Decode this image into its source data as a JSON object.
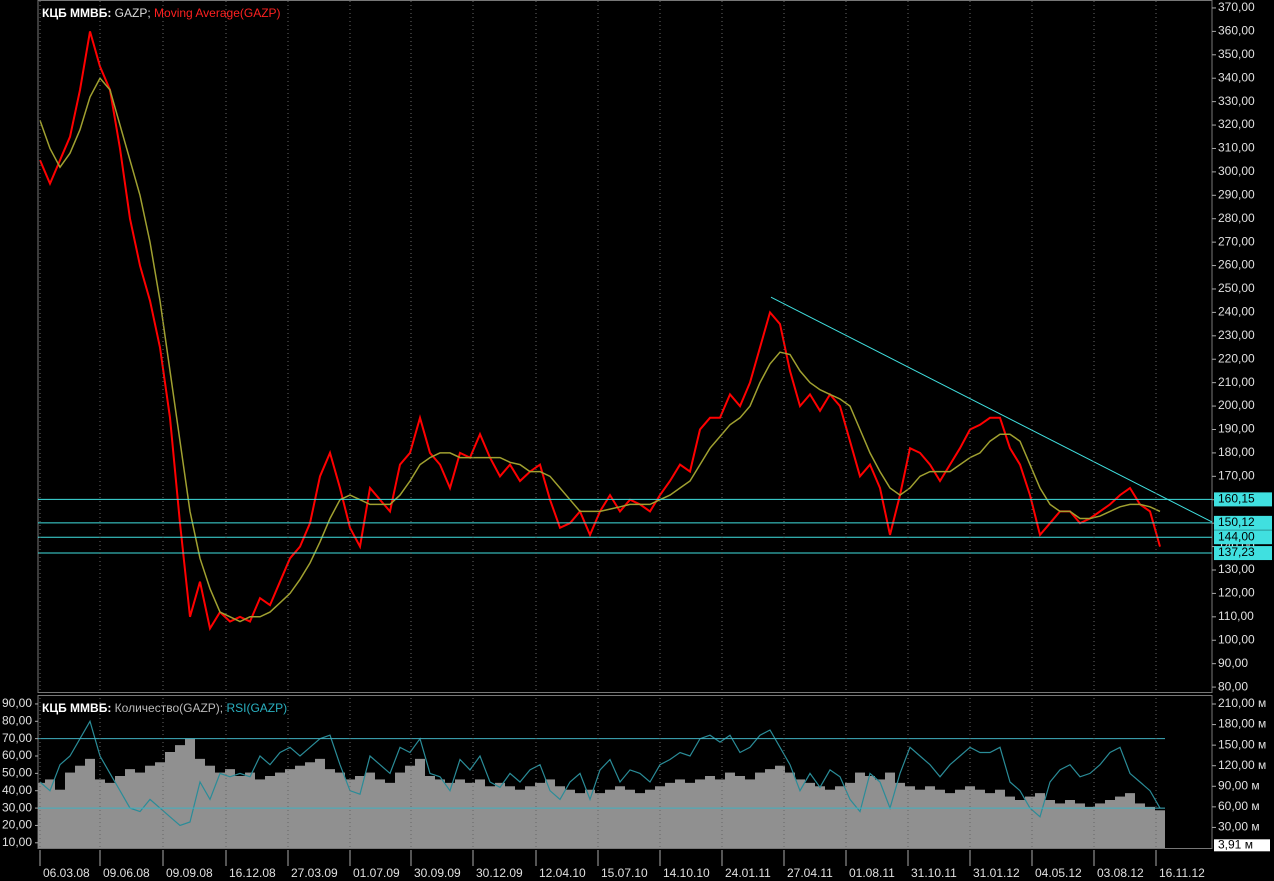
{
  "chart_data": [
    {
      "type": "line",
      "title": "КЦБ ММВБ:",
      "x": [
        0,
        1,
        2,
        3,
        4,
        5,
        6,
        7,
        8,
        9,
        10,
        11,
        12,
        13,
        14,
        15,
        16,
        17,
        18,
        19,
        20,
        21,
        22,
        23,
        24,
        25,
        26,
        27,
        28,
        29,
        30,
        31,
        32,
        33,
        34,
        35,
        36,
        37,
        38,
        39,
        40,
        41,
        42,
        43,
        44,
        45,
        46,
        47,
        48,
        49,
        50,
        51,
        52,
        53,
        54,
        55,
        56,
        57,
        58,
        59,
        60,
        61,
        62,
        63,
        64,
        65,
        66,
        67,
        68,
        69,
        70,
        71,
        72,
        73,
        74,
        75,
        76,
        77,
        78,
        79,
        80,
        81,
        82,
        83,
        84,
        85,
        86,
        87,
        88,
        89,
        90,
        91,
        92,
        93,
        94,
        95,
        96,
        97,
        98,
        99,
        100,
        101,
        102,
        103,
        104,
        105,
        106,
        107,
        108,
        109,
        110,
        111,
        112
      ],
      "series": [
        {
          "name": "GAZP;",
          "color": "#ff0000",
          "values": [
            305,
            295,
            305,
            315,
            335,
            360,
            345,
            335,
            310,
            280,
            260,
            245,
            225,
            195,
            150,
            110,
            125,
            105,
            112,
            108,
            110,
            108,
            118,
            115,
            125,
            135,
            140,
            150,
            170,
            180,
            165,
            148,
            140,
            165,
            160,
            155,
            175,
            180,
            195,
            180,
            175,
            165,
            180,
            178,
            188,
            178,
            170,
            175,
            168,
            172,
            175,
            160,
            148,
            150,
            155,
            145,
            155,
            162,
            155,
            160,
            158,
            155,
            162,
            168,
            175,
            172,
            190,
            195,
            195,
            205,
            200,
            210,
            225,
            240,
            235,
            215,
            200,
            205,
            198,
            205,
            200,
            185,
            170,
            175,
            165,
            145,
            162,
            182,
            180,
            175,
            168,
            175,
            182,
            190,
            192,
            195,
            195,
            182,
            175,
            162,
            145,
            150,
            155,
            155,
            150,
            152,
            155,
            158,
            162,
            165,
            158,
            155,
            140
          ]
        },
        {
          "name": "Moving Average(GAZP)",
          "color": "#a0a030",
          "values": [
            322,
            310,
            302,
            308,
            318,
            332,
            340,
            335,
            320,
            305,
            290,
            270,
            245,
            215,
            185,
            155,
            135,
            122,
            112,
            110,
            108,
            110,
            110,
            112,
            116,
            120,
            126,
            133,
            142,
            152,
            160,
            162,
            160,
            158,
            158,
            158,
            162,
            168,
            175,
            178,
            180,
            180,
            178,
            178,
            178,
            178,
            178,
            176,
            175,
            172,
            172,
            170,
            165,
            160,
            155,
            155,
            155,
            156,
            157,
            158,
            158,
            158,
            160,
            162,
            165,
            168,
            175,
            182,
            187,
            192,
            195,
            200,
            210,
            218,
            223,
            222,
            215,
            210,
            207,
            205,
            203,
            200,
            190,
            180,
            172,
            165,
            162,
            165,
            170,
            172,
            172,
            172,
            175,
            178,
            180,
            185,
            188,
            188,
            185,
            175,
            165,
            158,
            155,
            155,
            152,
            152,
            153,
            155,
            157,
            158,
            158,
            157,
            155
          ]
        }
      ],
      "xlim": [
        -0.2,
        117.2
      ],
      "ylim": [
        77.9,
        373.4
      ],
      "yticks": [
        {
          "value": 80,
          "label": "80,00"
        },
        {
          "value": 90,
          "label": "90,00"
        },
        {
          "value": 100,
          "label": "100,00"
        },
        {
          "value": 110,
          "label": "110,00"
        },
        {
          "value": 120,
          "label": "120,00"
        },
        {
          "value": 130,
          "label": "130,00"
        },
        {
          "value": 140,
          "label": "140,00"
        },
        {
          "value": 150,
          "label": "150,00"
        },
        {
          "value": 160,
          "label": "160,00"
        },
        {
          "value": 170,
          "label": "170,00"
        },
        {
          "value": 180,
          "label": "180,00"
        },
        {
          "value": 190,
          "label": "190,00"
        },
        {
          "value": 200,
          "label": "200,00"
        },
        {
          "value": 210,
          "label": "210,00"
        },
        {
          "value": 220,
          "label": "220,00"
        },
        {
          "value": 230,
          "label": "230,00"
        },
        {
          "value": 240,
          "label": "240,00"
        },
        {
          "value": 250,
          "label": "250,00"
        },
        {
          "value": 260,
          "label": "260,00"
        },
        {
          "value": 270,
          "label": "270,00"
        },
        {
          "value": 280,
          "label": "280,00"
        },
        {
          "value": 290,
          "label": "290,00"
        },
        {
          "value": 300,
          "label": "300,00"
        },
        {
          "value": 310,
          "label": "310,00"
        },
        {
          "value": 320,
          "label": "320,00"
        },
        {
          "value": 330,
          "label": "330,00"
        },
        {
          "value": 340,
          "label": "340,00"
        },
        {
          "value": 350,
          "label": "350,00"
        },
        {
          "value": 360,
          "label": "360,00"
        },
        {
          "value": 370,
          "label": "370,00"
        }
      ],
      "levels": [
        {
          "value": 160.15,
          "label": "160,15"
        },
        {
          "value": 150.12,
          "label": "150,12"
        },
        {
          "value": 144.0,
          "label": "144,00"
        },
        {
          "value": 137.23,
          "label": "137,23"
        }
      ],
      "level_color": "#40e0e0",
      "trendline": {
        "x": [
          73.1,
          117.2
        ],
        "y": [
          246.5,
          150.5
        ],
        "color": "#40e0e0"
      },
      "grid": "x"
    },
    {
      "type": "combo",
      "title": "КЦБ ММВБ:",
      "x": [
        0,
        1,
        2,
        3,
        4,
        5,
        6,
        7,
        8,
        9,
        10,
        11,
        12,
        13,
        14,
        15,
        16,
        17,
        18,
        19,
        20,
        21,
        22,
        23,
        24,
        25,
        26,
        27,
        28,
        29,
        30,
        31,
        32,
        33,
        34,
        35,
        36,
        37,
        38,
        39,
        40,
        41,
        42,
        43,
        44,
        45,
        46,
        47,
        48,
        49,
        50,
        51,
        52,
        53,
        54,
        55,
        56,
        57,
        58,
        59,
        60,
        61,
        62,
        63,
        64,
        65,
        66,
        67,
        68,
        69,
        70,
        71,
        72,
        73,
        74,
        75,
        76,
        77,
        78,
        79,
        80,
        81,
        82,
        83,
        84,
        85,
        86,
        87,
        88,
        89,
        90,
        91,
        92,
        93,
        94,
        95,
        96,
        97,
        98,
        99,
        100,
        101,
        102,
        103,
        104,
        105,
        106,
        107,
        108,
        109,
        110,
        111,
        112
      ],
      "series": [
        {
          "name": "Количество(GAZP);",
          "type": "bar",
          "axis": "y2",
          "color": "#909090",
          "values": [
            95,
            100,
            85,
            110,
            120,
            130,
            100,
            95,
            105,
            115,
            110,
            120,
            125,
            140,
            150,
            160,
            130,
            120,
            110,
            115,
            105,
            110,
            100,
            105,
            110,
            115,
            120,
            125,
            130,
            115,
            110,
            100,
            105,
            110,
            100,
            95,
            110,
            120,
            130,
            105,
            100,
            95,
            100,
            95,
            100,
            90,
            95,
            90,
            85,
            90,
            95,
            100,
            90,
            85,
            80,
            85,
            80,
            85,
            90,
            85,
            80,
            85,
            90,
            95,
            100,
            95,
            100,
            105,
            100,
            110,
            105,
            100,
            110,
            115,
            120,
            110,
            100,
            95,
            90,
            85,
            90,
            95,
            110,
            105,
            100,
            110,
            95,
            90,
            85,
            90,
            85,
            80,
            85,
            90,
            85,
            80,
            85,
            75,
            70,
            75,
            80,
            70,
            65,
            70,
            65,
            60,
            65,
            70,
            75,
            80,
            65,
            60,
            55
          ]
        },
        {
          "name": "RSI(GAZP)",
          "type": "line",
          "color": "#2a8c98",
          "values": [
            45,
            40,
            55,
            60,
            70,
            80,
            60,
            50,
            40,
            30,
            28,
            35,
            30,
            25,
            20,
            22,
            45,
            35,
            50,
            48,
            50,
            48,
            60,
            55,
            62,
            65,
            60,
            65,
            70,
            72,
            55,
            40,
            38,
            60,
            55,
            50,
            65,
            62,
            70,
            50,
            48,
            40,
            58,
            52,
            60,
            45,
            42,
            50,
            45,
            52,
            55,
            40,
            35,
            45,
            50,
            35,
            52,
            58,
            45,
            52,
            50,
            45,
            55,
            58,
            62,
            60,
            70,
            72,
            68,
            72,
            62,
            65,
            72,
            75,
            65,
            55,
            40,
            50,
            42,
            52,
            48,
            35,
            28,
            50,
            45,
            30,
            50,
            65,
            60,
            55,
            48,
            55,
            60,
            65,
            62,
            62,
            65,
            45,
            40,
            30,
            25,
            45,
            52,
            55,
            48,
            50,
            55,
            62,
            65,
            50,
            45,
            40,
            30
          ]
        }
      ],
      "xlim": [
        -0.2,
        117.2
      ],
      "xticks": [
        {
          "value": 0,
          "label": "06.03.08"
        },
        {
          "value": 6,
          "label": "09.06.08"
        },
        {
          "value": 12.3,
          "label": "09.09.08"
        },
        {
          "value": 18.6,
          "label": "16.12.08"
        },
        {
          "value": 24.8,
          "label": "27.03.09"
        },
        {
          "value": 31,
          "label": "01.07.09"
        },
        {
          "value": 37.1,
          "label": "30.09.09"
        },
        {
          "value": 43.3,
          "label": "30.12.09"
        },
        {
          "value": 49.6,
          "label": "12.04.10"
        },
        {
          "value": 55.8,
          "label": "15.07.10"
        },
        {
          "value": 62,
          "label": "14.10.10"
        },
        {
          "value": 68.2,
          "label": "24.01.11"
        },
        {
          "value": 74.4,
          "label": "27.04.11"
        },
        {
          "value": 80.6,
          "label": "01.08.11"
        },
        {
          "value": 86.8,
          "label": "31.10.11"
        },
        {
          "value": 93,
          "label": "31.01.12"
        },
        {
          "value": 99.2,
          "label": "04.05.12"
        },
        {
          "value": 105.4,
          "label": "03.08.12"
        },
        {
          "value": 111.6,
          "label": "16.11.12"
        }
      ],
      "ylim": [
        7,
        94
      ],
      "yticks": [
        {
          "value": 10,
          "label": "10,00"
        },
        {
          "value": 20,
          "label": "20,00"
        },
        {
          "value": 30,
          "label": "30,00"
        },
        {
          "value": 40,
          "label": "40,00"
        },
        {
          "value": 50,
          "label": "50,00"
        },
        {
          "value": 60,
          "label": "60,00"
        },
        {
          "value": 70,
          "label": "70,00"
        },
        {
          "value": 80,
          "label": "80,00"
        },
        {
          "value": 90,
          "label": "90,00"
        }
      ],
      "y2lim": [
        0,
        220.2
      ],
      "y2ticks": [
        {
          "value": 30,
          "label": "30,00 м"
        },
        {
          "value": 60,
          "label": "60,00 м"
        },
        {
          "value": 90,
          "label": "90,00 м"
        },
        {
          "value": 120,
          "label": "120,00 м"
        },
        {
          "value": 150,
          "label": "150,00 м"
        },
        {
          "value": 180,
          "label": "180,00 м"
        },
        {
          "value": 210,
          "label": "210,00 м"
        }
      ],
      "current_volume": {
        "value": 3.91,
        "label": "3,91 м"
      },
      "levels": [
        70,
        30
      ],
      "level_color": "#40b0c0",
      "grid": "x"
    }
  ]
}
